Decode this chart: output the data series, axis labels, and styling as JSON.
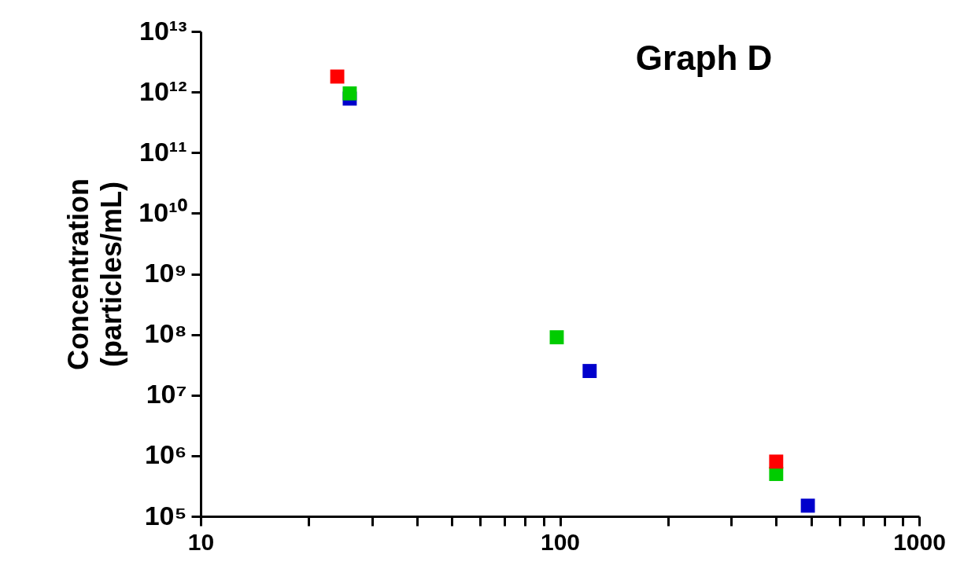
{
  "chart_data": {
    "type": "scatter",
    "title": "Graph D",
    "ylabel": "Concentration (particles/mL)",
    "log": "xy",
    "marker": "square",
    "xlim": [
      10,
      1000
    ],
    "xticks": [
      10,
      {
        "value": 20,
        "label": null
      },
      {
        "value": 30,
        "label": null
      },
      {
        "value": 40,
        "label": null
      },
      {
        "value": 50,
        "label": null
      },
      {
        "value": 60,
        "label": null
      },
      {
        "value": 70,
        "label": null
      },
      {
        "value": 80,
        "label": null
      },
      {
        "value": 90,
        "label": null
      },
      100,
      {
        "value": 200,
        "label": null
      },
      {
        "value": 300,
        "label": null
      },
      {
        "value": 400,
        "label": null
      },
      {
        "value": 500,
        "label": null
      },
      {
        "value": 600,
        "label": null
      },
      {
        "value": 700,
        "label": null
      },
      {
        "value": 800,
        "label": null
      },
      {
        "value": 900,
        "label": null
      },
      1000
    ],
    "ylim": [
      100000,
      10000000000000
    ],
    "yticks": [
      {
        "value": 100000,
        "label": "10⁵"
      },
      {
        "value": 1000000,
        "label": "10⁶"
      },
      {
        "value": 10000000,
        "label": "10⁷"
      },
      {
        "value": 100000000,
        "label": "10⁸"
      },
      {
        "value": 1000000000,
        "label": "10⁹"
      },
      {
        "value": 10000000000,
        "label": "10¹⁰"
      },
      {
        "value": 100000000000,
        "label": "10¹¹"
      },
      {
        "value": 1000000000000,
        "label": "10¹²"
      },
      {
        "value": 10000000000000,
        "label": "10¹³"
      }
    ],
    "series": [
      {
        "color": "#ff0000",
        "x": [
          24,
          400
        ],
        "values": [
          1800000000000,
          800000
        ]
      },
      {
        "color": "#00cc00",
        "x": [
          26,
          98,
          400
        ],
        "values": [
          950000000000,
          90000000,
          500000
        ]
      },
      {
        "color": "#0000cc",
        "x": [
          26,
          121,
          490
        ],
        "values": [
          780000000000,
          25000000,
          150000
        ]
      }
    ]
  }
}
